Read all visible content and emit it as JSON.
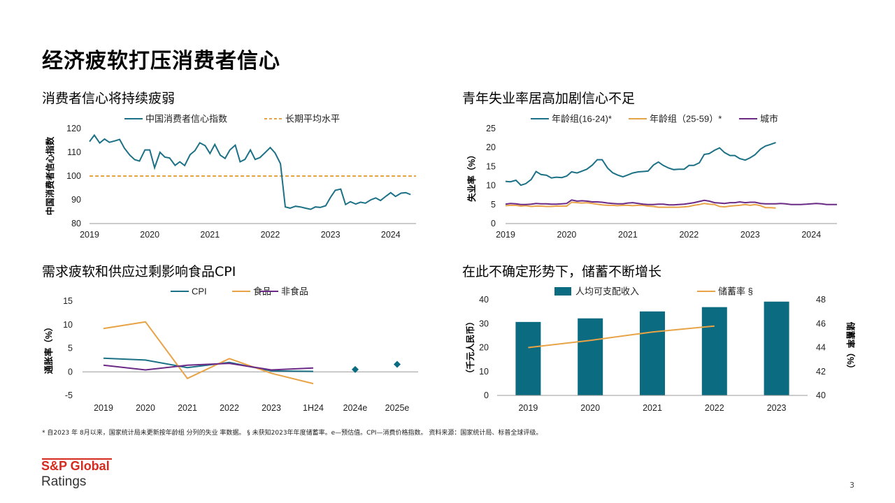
{
  "page": {
    "title": "经济疲软打压消费者信心",
    "footnote": "* 自2023 年 8月以来，国家统计局未更新按年龄组 分列的失业 率数据。 §   未获知2023年年度储蓄率。e—预估值。CPI—消费价格指数。  资料来源：国家统计局、标普全球评级。",
    "page_number": "3",
    "logo": {
      "name": "S&P Global",
      "sub": "Ratings"
    },
    "colors": {
      "teal": "#1c7186",
      "orange": "#e9a347",
      "purple": "#6a2a86",
      "bar": "#0b6b80",
      "brand_red": "#d52b1e"
    }
  },
  "chart_data": [
    {
      "id": "consumer-confidence",
      "type": "line",
      "title": "消费者信心将持续疲弱",
      "ylabel": "中国消费者信心指数",
      "xlabel": "",
      "ylim": [
        80,
        120
      ],
      "yticks": [
        80,
        90,
        100,
        110,
        120
      ],
      "xlim": [
        2019,
        2024.42
      ],
      "xticks": [
        "2019",
        "2020",
        "2021",
        "2022",
        "2023",
        "2024"
      ],
      "legend_position": "top",
      "series": [
        {
          "name": "中国消费者信心指数",
          "x": [
            2019.0,
            2019.08,
            2019.17,
            2019.25,
            2019.33,
            2019.42,
            2019.5,
            2019.58,
            2019.67,
            2019.75,
            2019.83,
            2019.92,
            2020.0,
            2020.08,
            2020.17,
            2020.25,
            2020.33,
            2020.42,
            2020.5,
            2020.58,
            2020.67,
            2020.75,
            2020.83,
            2020.92,
            2021.0,
            2021.08,
            2021.17,
            2021.25,
            2021.33,
            2021.42,
            2021.5,
            2021.58,
            2021.67,
            2021.75,
            2021.83,
            2021.92,
            2022.0,
            2022.08,
            2022.17,
            2022.25,
            2022.33,
            2022.42,
            2022.5,
            2022.58,
            2022.67,
            2022.75,
            2022.83,
            2022.92,
            2023.0,
            2023.08,
            2023.17,
            2023.25,
            2023.33,
            2023.42,
            2023.5,
            2023.58,
            2023.67,
            2023.75,
            2023.83,
            2023.92,
            2024.0,
            2024.08,
            2024.17,
            2024.25,
            2024.33
          ],
          "values": [
            114.5,
            117.2,
            113.9,
            115.6,
            114.2,
            114.8,
            115.4,
            111.7,
            108.8,
            106.9,
            106.3,
            111.0,
            111.0,
            103.5,
            110.0,
            108.0,
            107.6,
            104.5,
            106.0,
            104.4,
            109.0,
            110.7,
            114.0,
            112.8,
            109.5,
            113.3,
            108.8,
            107.4,
            111.0,
            113.0,
            106.0,
            107.0,
            111.0,
            107.0,
            107.8,
            110.0,
            112.0,
            109.7,
            105.2,
            87.0,
            86.5,
            87.3,
            87.0,
            86.5,
            86.0,
            87.0,
            86.8,
            87.5,
            91.0,
            94.0,
            94.5,
            88.0,
            89.2,
            88.2,
            89.0,
            88.6,
            90.0,
            90.8,
            89.7,
            91.5,
            93.0,
            91.4,
            92.8,
            93.0,
            92.2
          ]
        },
        {
          "name": "长期平均水平",
          "style": "dashed",
          "value": 100
        }
      ]
    },
    {
      "id": "youth-unemployment",
      "type": "line",
      "title": "青年失业率居高加剧信心不足",
      "ylabel": "失业率（%）",
      "xlabel": "",
      "ylim": [
        0,
        25
      ],
      "yticks": [
        0,
        5,
        10,
        15,
        20,
        25
      ],
      "xlim": [
        2019,
        2024.42
      ],
      "xticks": [
        "2019",
        "2020",
        "2021",
        "2022",
        "2023",
        "2024"
      ],
      "legend_position": "top",
      "series": [
        {
          "name": "年龄组(16-24)*",
          "x": [
            2019.0,
            2019.08,
            2019.17,
            2019.25,
            2019.33,
            2019.42,
            2019.5,
            2019.58,
            2019.67,
            2019.75,
            2019.83,
            2019.92,
            2020.0,
            2020.08,
            2020.17,
            2020.25,
            2020.33,
            2020.42,
            2020.5,
            2020.58,
            2020.67,
            2020.75,
            2020.83,
            2020.92,
            2021.0,
            2021.08,
            2021.17,
            2021.25,
            2021.33,
            2021.42,
            2021.5,
            2021.58,
            2021.67,
            2021.75,
            2021.83,
            2021.92,
            2022.0,
            2022.08,
            2022.17,
            2022.25,
            2022.33,
            2022.42,
            2022.5,
            2022.58,
            2022.67,
            2022.75,
            2022.83,
            2022.92,
            2023.0,
            2023.08,
            2023.17,
            2023.25,
            2023.33,
            2023.42
          ],
          "values": [
            11.1,
            11.0,
            11.4,
            10.1,
            10.5,
            11.6,
            13.7,
            12.9,
            12.7,
            12.0,
            12.2,
            12.1,
            12.5,
            13.6,
            13.3,
            13.8,
            14.3,
            15.4,
            16.8,
            16.8,
            14.6,
            13.4,
            12.8,
            12.3,
            12.8,
            13.3,
            13.6,
            13.7,
            13.8,
            15.4,
            16.2,
            15.3,
            14.6,
            14.2,
            14.3,
            14.3,
            15.3,
            15.3,
            16.0,
            18.2,
            18.4,
            19.3,
            19.9,
            18.7,
            17.9,
            17.9,
            17.1,
            16.7,
            17.3,
            18.1,
            19.6,
            20.4,
            20.8,
            21.3
          ]
        },
        {
          "name": "年龄组（25-59）*",
          "x": [
            2019.0,
            2019.08,
            2019.17,
            2019.25,
            2019.33,
            2019.42,
            2019.5,
            2019.58,
            2019.67,
            2019.75,
            2019.83,
            2019.92,
            2020.0,
            2020.08,
            2020.17,
            2020.25,
            2020.33,
            2020.42,
            2020.5,
            2020.58,
            2020.67,
            2020.75,
            2020.83,
            2020.92,
            2021.0,
            2021.08,
            2021.17,
            2021.25,
            2021.33,
            2021.42,
            2021.5,
            2021.58,
            2021.67,
            2021.75,
            2021.83,
            2021.92,
            2022.0,
            2022.08,
            2022.17,
            2022.25,
            2022.33,
            2022.42,
            2022.5,
            2022.58,
            2022.67,
            2022.75,
            2022.83,
            2022.92,
            2023.0,
            2023.08,
            2023.17,
            2023.25,
            2023.33,
            2023.42
          ],
          "values": [
            4.7,
            4.8,
            4.8,
            4.6,
            4.7,
            4.5,
            4.6,
            4.6,
            4.5,
            4.5,
            4.6,
            4.6,
            4.6,
            5.6,
            5.5,
            5.4,
            5.5,
            5.3,
            5.1,
            4.9,
            4.8,
            4.8,
            4.7,
            4.8,
            4.8,
            4.7,
            4.8,
            4.8,
            4.6,
            4.5,
            4.3,
            4.3,
            4.3,
            4.3,
            4.3,
            4.4,
            4.5,
            4.8,
            5.0,
            5.3,
            5.1,
            5.0,
            4.5,
            4.4,
            4.6,
            4.7,
            4.8,
            5.0,
            4.8,
            5.0,
            4.7,
            4.2,
            4.2,
            4.1
          ]
        },
        {
          "name": "城市",
          "x": [
            2019.0,
            2019.08,
            2019.17,
            2019.25,
            2019.33,
            2019.42,
            2019.5,
            2019.58,
            2019.67,
            2019.75,
            2019.83,
            2019.92,
            2020.0,
            2020.08,
            2020.17,
            2020.25,
            2020.33,
            2020.42,
            2020.5,
            2020.58,
            2020.67,
            2020.75,
            2020.83,
            2020.92,
            2021.0,
            2021.08,
            2021.17,
            2021.25,
            2021.33,
            2021.42,
            2021.5,
            2021.58,
            2021.67,
            2021.75,
            2021.83,
            2021.92,
            2022.0,
            2022.08,
            2022.17,
            2022.25,
            2022.33,
            2022.42,
            2022.5,
            2022.58,
            2022.67,
            2022.75,
            2022.83,
            2022.92,
            2023.0,
            2023.08,
            2023.17,
            2023.25,
            2023.33,
            2023.42,
            2023.5,
            2023.58,
            2023.67,
            2023.75,
            2023.83,
            2023.92,
            2024.0,
            2024.08,
            2024.17,
            2024.25,
            2024.33,
            2024.42
          ],
          "values": [
            5.1,
            5.3,
            5.2,
            5.0,
            5.0,
            5.1,
            5.3,
            5.2,
            5.2,
            5.1,
            5.1,
            5.2,
            5.3,
            6.2,
            5.9,
            6.0,
            5.9,
            5.7,
            5.7,
            5.6,
            5.4,
            5.3,
            5.2,
            5.2,
            5.4,
            5.5,
            5.3,
            5.1,
            5.0,
            5.0,
            5.1,
            5.1,
            4.9,
            4.9,
            5.0,
            5.1,
            5.3,
            5.5,
            5.8,
            6.1,
            5.9,
            5.5,
            5.4,
            5.3,
            5.5,
            5.5,
            5.7,
            5.5,
            5.6,
            5.6,
            5.3,
            5.2,
            5.2,
            5.2,
            5.3,
            5.2,
            5.0,
            5.0,
            5.0,
            5.1,
            5.2,
            5.3,
            5.2,
            5.0,
            5.0,
            5.0
          ]
        }
      ]
    },
    {
      "id": "food-cpi",
      "type": "line",
      "title": "需求疲软和供应过剩影响食品CPI",
      "ylabel": "通胀率（%）",
      "xlabel": "",
      "ylim": [
        -5,
        15
      ],
      "yticks": [
        -5,
        0,
        5,
        10,
        15
      ],
      "categories": [
        "2019",
        "2020",
        "2021",
        "2022",
        "2023",
        "1H24",
        "2024e",
        "2025e"
      ],
      "legend_position": "top",
      "series": [
        {
          "name": "CPI",
          "values": [
            2.9,
            2.5,
            0.9,
            2.0,
            0.2,
            0.1,
            null,
            null
          ]
        },
        {
          "name": "食品",
          "values": [
            9.2,
            10.6,
            -1.4,
            2.8,
            -0.3,
            -2.5,
            null,
            null
          ]
        },
        {
          "name": "非食品",
          "values": [
            1.4,
            0.4,
            1.4,
            1.8,
            0.4,
            0.8,
            null,
            null
          ]
        },
        {
          "name": "CPI forecast",
          "style": "markers",
          "values": [
            null,
            null,
            null,
            null,
            null,
            null,
            0.5,
            1.6
          ]
        }
      ]
    },
    {
      "id": "savings",
      "type": "bar",
      "title": "在此不确定形势下，储蓄不断增长",
      "categories": [
        "2019",
        "2020",
        "2021",
        "2022",
        "2023"
      ],
      "ylabel": "（千元人民币）",
      "y2label": "储蓄率（%）",
      "ylim": [
        0,
        40
      ],
      "yticks": [
        0,
        10,
        20,
        30,
        40
      ],
      "y2lim": [
        40,
        48
      ],
      "y2ticks": [
        40,
        42,
        44,
        46,
        48
      ],
      "legend_position": "top",
      "series": [
        {
          "name": "人均可支配收入",
          "type": "bar",
          "axis": "left",
          "values": [
            30.7,
            32.2,
            35.1,
            36.9,
            39.2
          ]
        },
        {
          "name": "储蓄率 §",
          "type": "line",
          "axis": "right",
          "values": [
            44.0,
            44.6,
            45.3,
            45.8,
            null
          ]
        }
      ]
    }
  ]
}
